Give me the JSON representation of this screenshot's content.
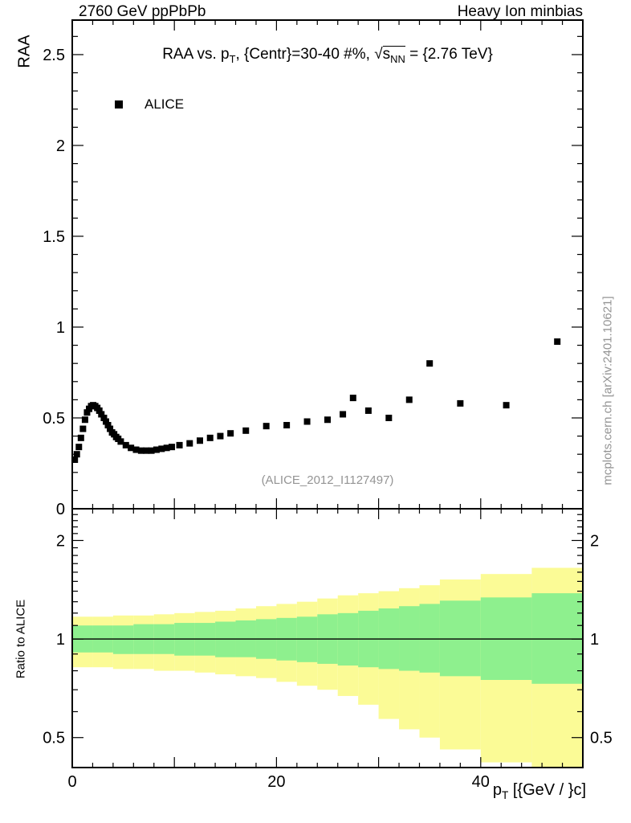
{
  "header": {
    "left": "2760 GeV ppPbPb",
    "right": "Heavy Ion minbias"
  },
  "top_panel": {
    "ylabel": "RAA",
    "title": {
      "part1": "RAA vs. p",
      "sub1": "T",
      "part2": ", {Centr}=30-40 #%, ",
      "sqrt_sign": "√",
      "part3": "s",
      "sub2": "NN",
      "part4": " = {2.76 TeV}"
    },
    "legend": [
      {
        "label": "ALICE",
        "marker": "black-filled-square"
      }
    ],
    "watermark": "(ALICE_2012_I1127497)"
  },
  "bottom_panel": {
    "ylabel": "Ratio to ALICE"
  },
  "xaxis": {
    "part1": "p",
    "sub": "T",
    "part2": " [{GeV / }c]"
  },
  "side_note": "mcplots.cern.ch [arXiv:2401.10621]",
  "chart_data": [
    {
      "type": "scatter",
      "name": "raa-vs-pt",
      "title": "RAA vs. pT, {Centr}=30-40 #%, sqrt(s_NN) = {2.76 TeV}",
      "xlabel": "pT [GeV/c]",
      "ylabel": "RAA",
      "xlim": [
        0,
        50
      ],
      "ylim": [
        0,
        2.69
      ],
      "yticks": [
        0,
        0.5,
        1,
        1.5,
        2,
        2.5
      ],
      "ytick_labels": [
        "0",
        "0.5",
        "1",
        "1.5",
        "2",
        "2.5"
      ],
      "ytick_minor_step": 0.1,
      "xticks_labeled": [
        0,
        20,
        40
      ],
      "xtick_labels": [
        "0",
        "20",
        "40"
      ],
      "xtick_medium_step": 10,
      "xtick_minor_step": 2,
      "grid": false,
      "legend_position": "top-left-inside",
      "series": [
        {
          "name": "ALICE",
          "marker": "filled-square",
          "color": "#000000",
          "x": [
            0.25,
            0.45,
            0.65,
            0.85,
            1.05,
            1.25,
            1.45,
            1.65,
            1.85,
            2.05,
            2.25,
            2.45,
            2.65,
            2.85,
            3.1,
            3.3,
            3.5,
            3.7,
            3.9,
            4.1,
            4.3,
            4.5,
            4.75,
            5.25,
            5.75,
            6.25,
            6.75,
            7.25,
            7.75,
            8.25,
            8.75,
            9.25,
            9.75,
            10.5,
            11.5,
            12.5,
            13.5,
            14.5,
            15.5,
            17,
            19,
            21,
            23,
            25,
            26.5,
            27.5,
            29,
            31,
            33,
            35,
            38,
            42.5,
            47.5
          ],
          "y": [
            0.27,
            0.3,
            0.34,
            0.39,
            0.44,
            0.49,
            0.53,
            0.55,
            0.565,
            0.57,
            0.565,
            0.555,
            0.54,
            0.52,
            0.5,
            0.48,
            0.46,
            0.44,
            0.42,
            0.41,
            0.395,
            0.385,
            0.37,
            0.35,
            0.335,
            0.325,
            0.32,
            0.32,
            0.32,
            0.325,
            0.33,
            0.335,
            0.34,
            0.35,
            0.36,
            0.375,
            0.39,
            0.4,
            0.415,
            0.43,
            0.455,
            0.46,
            0.48,
            0.49,
            0.52,
            0.61,
            0.54,
            0.5,
            0.6,
            0.8,
            0.58,
            0.57,
            0.92
          ]
        }
      ]
    },
    {
      "type": "band",
      "name": "ratio-to-alice",
      "ylabel": "Ratio to ALICE",
      "yscale": "log",
      "xlim": [
        0,
        50
      ],
      "ylim": [
        0.405,
        2.5
      ],
      "yticks": [
        0.5,
        1,
        2
      ],
      "ytick_labels": [
        "0.5",
        "1",
        "2"
      ],
      "refline": 1,
      "bin_edges": [
        0,
        2,
        4,
        6,
        8,
        10,
        12,
        14,
        16,
        18,
        20,
        22,
        24,
        26,
        28,
        30,
        32,
        34,
        36,
        40,
        45,
        50
      ],
      "bands": [
        {
          "name": "outer-uncertainty-band",
          "color": "#fbfb96",
          "lo": [
            0.82,
            0.82,
            0.81,
            0.81,
            0.8,
            0.8,
            0.79,
            0.78,
            0.77,
            0.76,
            0.74,
            0.72,
            0.7,
            0.67,
            0.63,
            0.57,
            0.53,
            0.5,
            0.46,
            0.42,
            0.38
          ],
          "hi": [
            1.17,
            1.17,
            1.18,
            1.18,
            1.19,
            1.2,
            1.21,
            1.22,
            1.24,
            1.26,
            1.28,
            1.3,
            1.33,
            1.36,
            1.38,
            1.4,
            1.43,
            1.46,
            1.52,
            1.58,
            1.65
          ]
        },
        {
          "name": "inner-uncertainty-band",
          "color": "#8ef08e",
          "lo": [
            0.91,
            0.91,
            0.9,
            0.9,
            0.9,
            0.89,
            0.89,
            0.88,
            0.88,
            0.87,
            0.86,
            0.85,
            0.84,
            0.83,
            0.82,
            0.81,
            0.8,
            0.79,
            0.77,
            0.75,
            0.73
          ],
          "hi": [
            1.1,
            1.1,
            1.1,
            1.11,
            1.11,
            1.12,
            1.12,
            1.13,
            1.14,
            1.15,
            1.16,
            1.17,
            1.19,
            1.2,
            1.22,
            1.24,
            1.26,
            1.28,
            1.31,
            1.34,
            1.38
          ]
        }
      ]
    }
  ]
}
